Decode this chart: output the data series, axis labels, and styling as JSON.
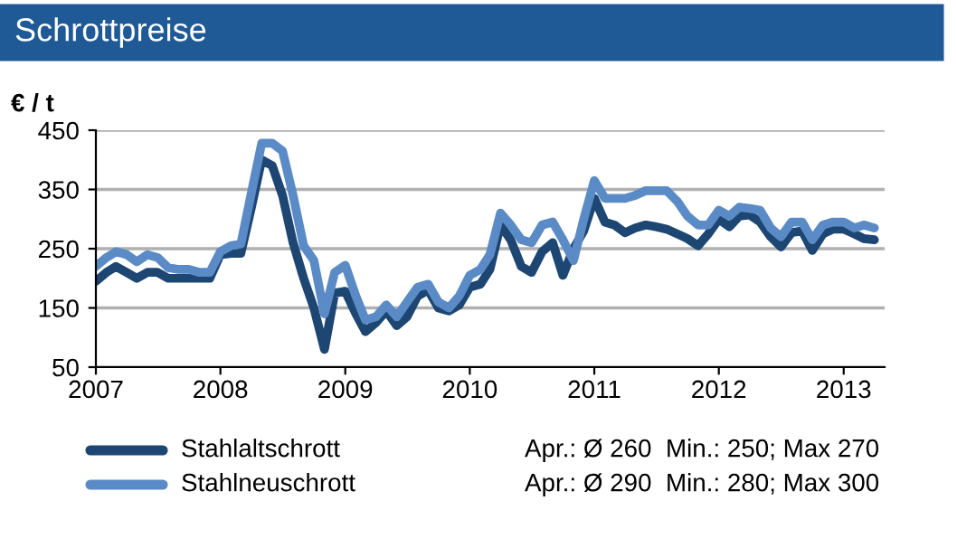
{
  "chart_data": {
    "type": "line",
    "title": "Schrottpreise",
    "ylabel": "€ / t",
    "x": [
      "2007-01",
      "2007-02",
      "2007-03",
      "2007-04",
      "2007-05",
      "2007-06",
      "2007-07",
      "2007-08",
      "2007-09",
      "2007-10",
      "2007-11",
      "2007-12",
      "2008-01",
      "2008-02",
      "2008-03",
      "2008-04",
      "2008-05",
      "2008-06",
      "2008-07",
      "2008-08",
      "2008-09",
      "2008-10",
      "2008-11",
      "2008-12",
      "2009-01",
      "2009-02",
      "2009-03",
      "2009-04",
      "2009-05",
      "2009-06",
      "2009-07",
      "2009-08",
      "2009-09",
      "2009-10",
      "2009-11",
      "2009-12",
      "2010-01",
      "2010-02",
      "2010-03",
      "2010-04",
      "2010-05",
      "2010-06",
      "2010-07",
      "2010-08",
      "2010-09",
      "2010-10",
      "2010-11",
      "2010-12",
      "2011-01",
      "2011-02",
      "2011-03",
      "2011-04",
      "2011-05",
      "2011-06",
      "2011-07",
      "2011-08",
      "2011-09",
      "2011-10",
      "2011-11",
      "2011-12",
      "2012-01",
      "2012-02",
      "2012-03",
      "2012-04",
      "2012-05",
      "2012-06",
      "2012-07",
      "2012-08",
      "2012-09",
      "2012-10",
      "2012-11",
      "2012-12",
      "2013-01",
      "2013-02",
      "2013-03",
      "2013-04"
    ],
    "series": [
      {
        "name": "Stahlaltschrott",
        "color": "#1d4672",
        "values": [
          195,
          210,
          220,
          210,
          200,
          210,
          210,
          200,
          200,
          200,
          200,
          200,
          240,
          242,
          242,
          320,
          400,
          390,
          340,
          260,
          200,
          150,
          80,
          175,
          178,
          140,
          110,
          125,
          145,
          120,
          135,
          170,
          180,
          150,
          145,
          155,
          185,
          190,
          215,
          290,
          265,
          220,
          210,
          245,
          260,
          205,
          250,
          280,
          335,
          295,
          290,
          277,
          285,
          290,
          287,
          283,
          275,
          267,
          255,
          275,
          300,
          287,
          305,
          307,
          295,
          270,
          253,
          277,
          280,
          247,
          275,
          283,
          283,
          275,
          267,
          265
        ]
      },
      {
        "name": "Stahlneuschrott",
        "color": "#5b8bc6",
        "values": [
          220,
          235,
          245,
          240,
          228,
          240,
          235,
          218,
          215,
          215,
          210,
          210,
          245,
          255,
          258,
          345,
          428,
          428,
          415,
          340,
          255,
          230,
          140,
          210,
          222,
          170,
          130,
          135,
          155,
          135,
          160,
          185,
          190,
          160,
          150,
          170,
          205,
          215,
          240,
          310,
          290,
          265,
          260,
          290,
          295,
          265,
          230,
          300,
          365,
          335,
          335,
          335,
          340,
          348,
          348,
          348,
          330,
          305,
          290,
          290,
          315,
          305,
          320,
          318,
          315,
          285,
          270,
          295,
          295,
          265,
          290,
          295,
          295,
          285,
          290,
          285
        ]
      }
    ],
    "xlim": [
      "2007-01",
      "2013-05"
    ],
    "xticks": [
      {
        "value": "2007-01",
        "label": "2007"
      },
      {
        "value": "2008-01",
        "label": "2008"
      },
      {
        "value": "2009-01",
        "label": "2009"
      },
      {
        "value": "2010-01",
        "label": "2010"
      },
      {
        "value": "2011-01",
        "label": "2011"
      },
      {
        "value": "2012-01",
        "label": "2012"
      },
      {
        "value": "2013-01",
        "label": "2013"
      }
    ],
    "ylim": [
      50,
      450
    ],
    "yticks": [
      50,
      150,
      250,
      350,
      450
    ],
    "grid": "y",
    "legend": "bottom",
    "line_style": "solid",
    "marker": "none",
    "annotations": [
      "Apr.: Ø 260  Min.: 250; Max 270",
      "Apr.: Ø 290  Min.: 280; Max 300"
    ]
  }
}
